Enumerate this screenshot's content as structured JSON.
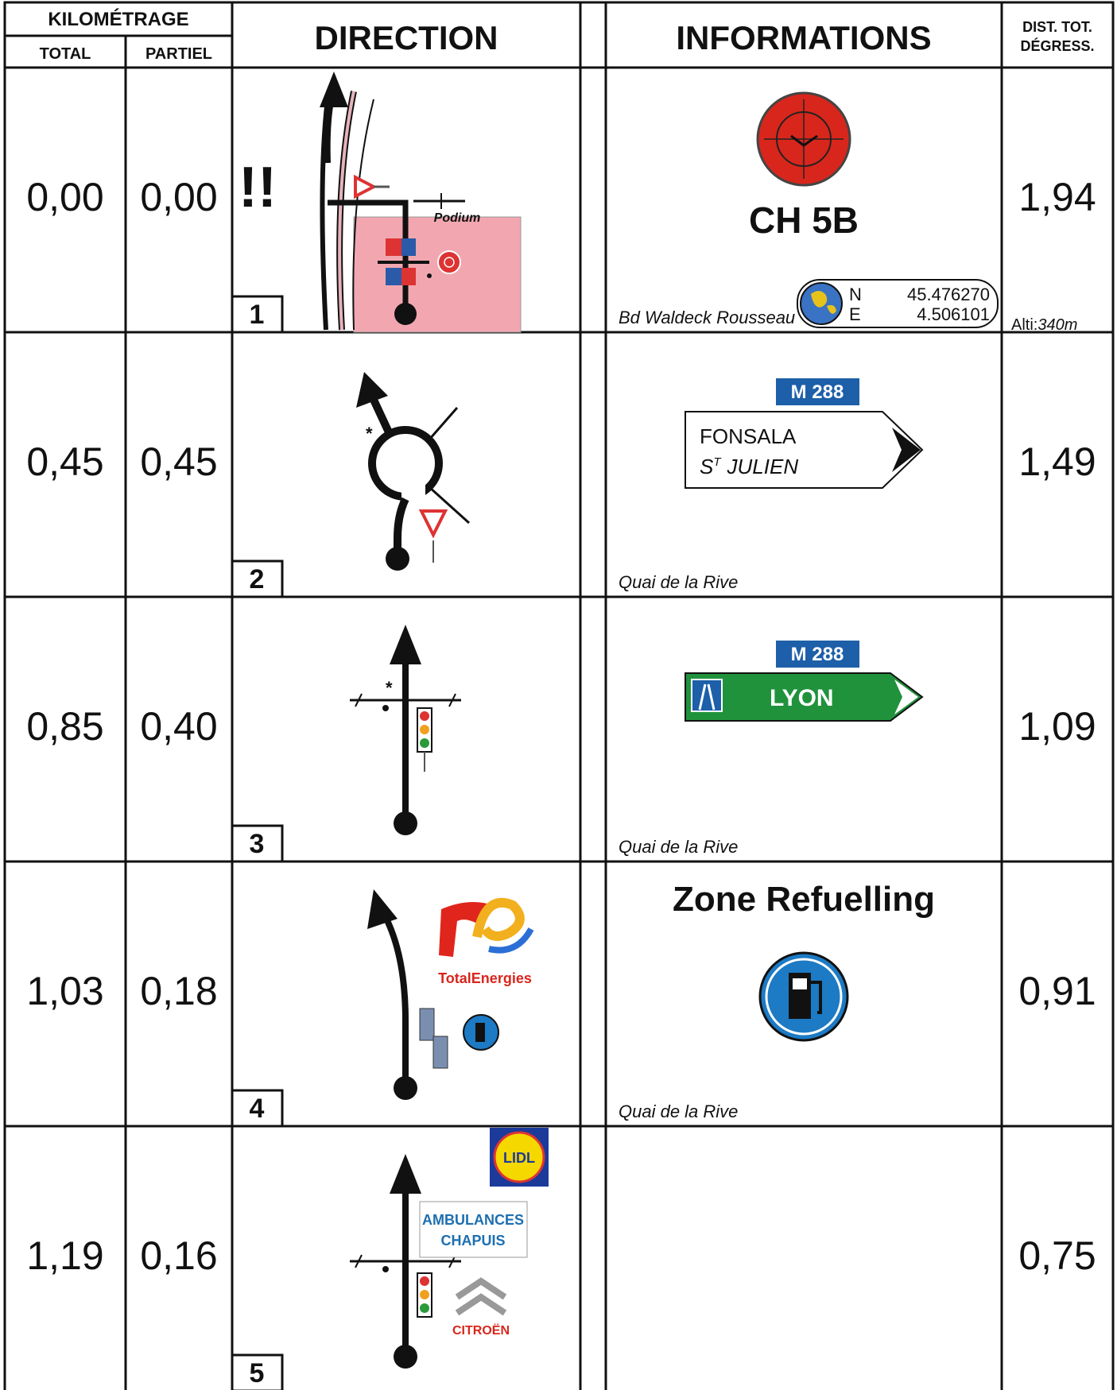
{
  "header": {
    "kilometrage": "KILOMÉTRAGE",
    "total": "TOTAL",
    "partiel": "PARTIEL",
    "direction": "DIRECTION",
    "informations": "INFORMATIONS",
    "dist_line1": "DIST. TOT.",
    "dist_line2": "DÉGRESS."
  },
  "rows": [
    {
      "number": 1,
      "total": "0,00",
      "partiel": "0,00",
      "dist": "1,94",
      "direction": {
        "warning": "!!",
        "label": "Podium"
      },
      "info": {
        "title": "CH 5B",
        "street": "Bd Waldeck Rousseau",
        "lat_label": "N",
        "lat": "45.476270",
        "lon_label": "E",
        "lon": "4.506101",
        "alti_label": "Alti:",
        "alti": "340m"
      }
    },
    {
      "number": 2,
      "total": "0,45",
      "partiel": "0,45",
      "dist": "1,49",
      "info": {
        "road": "M 288",
        "sign_line1": "FONSALA",
        "sign_line2_main": "S",
        "sign_line2_sup": "T",
        "sign_line2_rest": "JULIEN",
        "street": "Quai de la Rive"
      }
    },
    {
      "number": 3,
      "total": "0,85",
      "partiel": "0,40",
      "dist": "1,09",
      "info": {
        "road": "M 288",
        "sign": "LYON",
        "street": "Quai de la Rive"
      }
    },
    {
      "number": 4,
      "total": "1,03",
      "partiel": "0,18",
      "dist": "0,91",
      "direction": {
        "brand": "TotalEnergies"
      },
      "info": {
        "title": "Zone Refuelling",
        "street": "Quai de la Rive"
      }
    },
    {
      "number": 5,
      "total": "1,19",
      "partiel": "0,16",
      "dist": "0,75",
      "direction": {
        "shop": "LIDL",
        "ambulance_line1": "AMBULANCES",
        "ambulance_line2": "CHAPUIS",
        "brand": "CITROËN"
      }
    }
  ]
}
